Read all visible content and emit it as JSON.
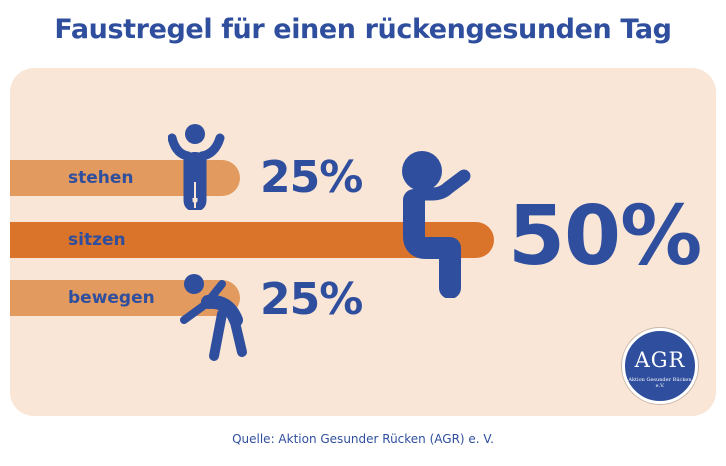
{
  "title": "Faustregel für einen rückengesunden Tag",
  "source": "Quelle: Aktion Gesunder Rücken (AGR) e. V.",
  "logo": {
    "text": "AGR",
    "subtext": "Aktion Gesunder Rücken e.V."
  },
  "colors": {
    "title": "#2f4f9e",
    "panel": "#fae6d6",
    "bar_light": "#e29a5e",
    "bar_dark": "#d9742a"
  },
  "chart_data": {
    "type": "bar",
    "categories": [
      "stehen",
      "sitzen",
      "bewegen"
    ],
    "values": [
      25,
      50,
      25
    ],
    "value_labels": [
      "25%",
      "50%",
      "25%"
    ],
    "unit": "%",
    "icons": [
      "standing-person-icon",
      "sitting-person-icon",
      "moving-person-icon"
    ],
    "title": "Faustregel für einen rückengesunden Tag",
    "xlabel": "",
    "ylabel": "",
    "ylim": [
      0,
      50
    ],
    "grid": false
  }
}
